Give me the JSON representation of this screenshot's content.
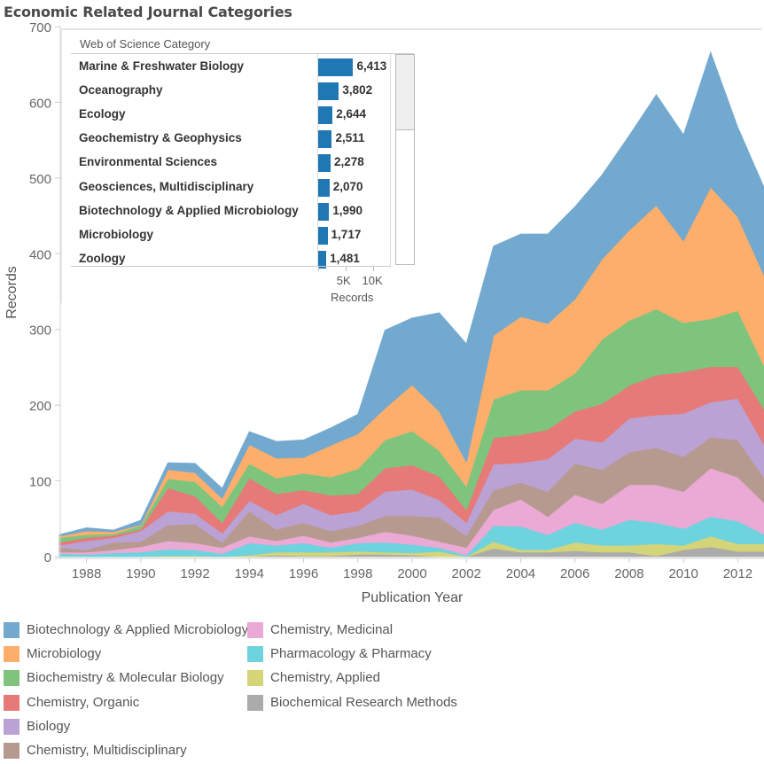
{
  "title": "Economic Related Journal Categories",
  "inset": {
    "header": "Web of Science Category",
    "axis_title": "Records",
    "ticks": [
      "5K",
      "10K"
    ],
    "tick_values": [
      5000,
      10000
    ],
    "rows": [
      {
        "category": "Marine & Freshwater Biology",
        "value": 6413,
        "label": "6,413"
      },
      {
        "category": "Oceanography",
        "value": 3802,
        "label": "3,802"
      },
      {
        "category": "Ecology",
        "value": 2644,
        "label": "2,644"
      },
      {
        "category": "Geochemistry & Geophysics",
        "value": 2511,
        "label": "2,511"
      },
      {
        "category": "Environmental Sciences",
        "value": 2278,
        "label": "2,278"
      },
      {
        "category": "Geosciences, Multidisciplinary",
        "value": 2070,
        "label": "2,070"
      },
      {
        "category": "Biotechnology & Applied Microbiology",
        "value": 1990,
        "label": "1,990"
      },
      {
        "category": "Microbiology",
        "value": 1717,
        "label": "1,717"
      },
      {
        "category": "Zoology",
        "value": 1481,
        "label": "1,481"
      }
    ],
    "bar_color": "#1f77b4"
  },
  "chart_data": {
    "type": "area",
    "stacked": true,
    "title": "Economic Related Journal Categories",
    "xlabel": "Publication Year",
    "ylabel": "Records",
    "ylim": [
      0,
      700
    ],
    "xlim": [
      1987,
      2013
    ],
    "yticks": [
      0,
      100,
      200,
      300,
      400,
      500,
      600,
      700
    ],
    "xticks": [
      1988,
      1990,
      1992,
      1994,
      1996,
      1998,
      2000,
      2002,
      2004,
      2006,
      2008,
      2010,
      2012
    ],
    "legend_position": "bottom-left",
    "x": [
      1987,
      1988,
      1989,
      1990,
      1991,
      1992,
      1993,
      1994,
      1995,
      1996,
      1997,
      1998,
      1999,
      2000,
      2001,
      2002,
      2003,
      2004,
      2005,
      2006,
      2007,
      2008,
      2009,
      2010,
      2011,
      2012,
      2013
    ],
    "series": [
      {
        "name": "Biochemical Research Methods",
        "color": "#ababab",
        "values": [
          0,
          0,
          0,
          0,
          0,
          0,
          0,
          0,
          2,
          1,
          1,
          3,
          3,
          2,
          0,
          0,
          11,
          6,
          6,
          8,
          6,
          6,
          1,
          9,
          13,
          7,
          7
        ]
      },
      {
        "name": "Chemistry, Applied",
        "color": "#d4d478",
        "values": [
          0,
          0,
          0,
          0,
          1,
          1,
          0,
          2,
          4,
          5,
          5,
          4,
          3,
          3,
          7,
          0,
          9,
          3,
          3,
          11,
          9,
          9,
          16,
          6,
          14,
          10,
          10
        ]
      },
      {
        "name": "Pharmacology & Pharmacy",
        "color": "#6dd3de",
        "values": [
          4,
          3,
          5,
          6,
          9,
          8,
          4,
          16,
          9,
          12,
          6,
          11,
          13,
          11,
          5,
          2,
          21,
          31,
          20,
          26,
          21,
          34,
          28,
          22,
          26,
          30,
          12
        ]
      },
      {
        "name": "Chemistry, Medicinal",
        "color": "#eba9d6",
        "values": [
          2,
          3,
          4,
          7,
          11,
          9,
          8,
          9,
          6,
          10,
          7,
          7,
          14,
          12,
          8,
          10,
          21,
          36,
          24,
          37,
          34,
          46,
          50,
          49,
          64,
          58,
          41
        ]
      },
      {
        "name": "Chemistry, Multidisciplinary",
        "color": "#b79a8f",
        "values": [
          6,
          3,
          10,
          7,
          21,
          25,
          7,
          33,
          15,
          17,
          15,
          16,
          21,
          26,
          32,
          16,
          26,
          22,
          33,
          41,
          45,
          43,
          49,
          46,
          41,
          49,
          33
        ]
      },
      {
        "name": "Biology",
        "color": "#bba2d4",
        "values": [
          3,
          12,
          6,
          14,
          18,
          14,
          12,
          14,
          19,
          25,
          21,
          19,
          32,
          35,
          23,
          17,
          34,
          26,
          43,
          33,
          36,
          45,
          43,
          57,
          46,
          55,
          43
        ]
      },
      {
        "name": "Chemistry, Organic",
        "color": "#e57a78",
        "values": [
          4,
          4,
          3,
          2,
          31,
          23,
          14,
          30,
          28,
          18,
          26,
          23,
          31,
          32,
          31,
          17,
          35,
          37,
          39,
          36,
          51,
          43,
          53,
          55,
          47,
          42,
          47
        ]
      },
      {
        "name": "Biochemistry & Molecular Biology",
        "color": "#7fc47d",
        "values": [
          6,
          4,
          2,
          5,
          12,
          19,
          21,
          19,
          21,
          22,
          24,
          33,
          37,
          45,
          34,
          31,
          51,
          59,
          52,
          50,
          85,
          86,
          87,
          65,
          63,
          74,
          57
        ]
      },
      {
        "name": "Microbiology",
        "color": "#fdae6b",
        "values": [
          2,
          5,
          3,
          1,
          12,
          12,
          11,
          25,
          26,
          21,
          42,
          46,
          42,
          61,
          52,
          32,
          84,
          97,
          88,
          98,
          106,
          119,
          137,
          108,
          174,
          124,
          119
        ]
      },
      {
        "name": "Biotechnology & Applied Microbiology",
        "color": "#73a9cf",
        "values": [
          2,
          4,
          2,
          6,
          9,
          12,
          13,
          17,
          22,
          23,
          23,
          26,
          103,
          88,
          130,
          156,
          118,
          109,
          118,
          122,
          111,
          125,
          146,
          140,
          178,
          118,
          116
        ]
      }
    ]
  },
  "legend": {
    "column1": [
      {
        "label": "Biotechnology & Applied Microbiology",
        "color": "#73a9cf"
      },
      {
        "label": "Microbiology",
        "color": "#fdae6b"
      },
      {
        "label": "Biochemistry & Molecular Biology",
        "color": "#7fc47d"
      },
      {
        "label": "Chemistry, Organic",
        "color": "#e57a78"
      },
      {
        "label": "Biology",
        "color": "#bba2d4"
      },
      {
        "label": "Chemistry, Multidisciplinary",
        "color": "#b79a8f"
      }
    ],
    "column2": [
      {
        "label": "Chemistry, Medicinal",
        "color": "#eba9d6"
      },
      {
        "label": "Pharmacology & Pharmacy",
        "color": "#6dd3de"
      },
      {
        "label": "Chemistry, Applied",
        "color": "#d4d478"
      },
      {
        "label": "Biochemical Research Methods",
        "color": "#ababab"
      }
    ]
  }
}
